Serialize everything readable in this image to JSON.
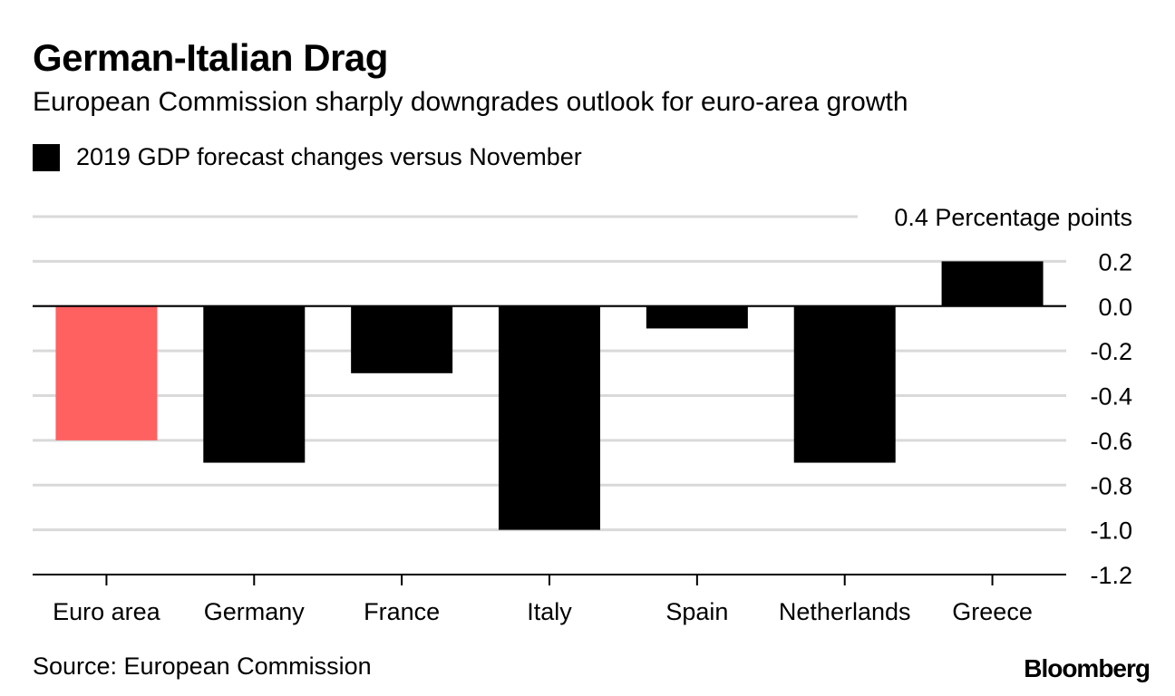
{
  "header": {
    "title": "German-Italian Drag",
    "subtitle": "European Commission sharply downgrades outlook for euro-area growth"
  },
  "legend": {
    "label": "2019 GDP forecast changes versus November",
    "color": "#000000"
  },
  "footer": {
    "source": "Source: European Commission",
    "brand": "Bloomberg"
  },
  "colors": {
    "highlight": "#ff6060",
    "bar": "#000000",
    "grid": "#d9d9d9",
    "axis": "#000000"
  },
  "chart_data": {
    "type": "bar",
    "title": "German-Italian Drag",
    "subtitle": "European Commission sharply downgrades outlook for euro-area growth",
    "categories": [
      "Euro area",
      "Germany",
      "France",
      "Italy",
      "Spain",
      "Netherlands",
      "Greece"
    ],
    "series": [
      {
        "name": "2019 GDP forecast changes versus November",
        "values": [
          -0.6,
          -0.7,
          -0.3,
          -1.0,
          -0.1,
          -0.7,
          0.2
        ],
        "highlight_index": 0
      }
    ],
    "ylabel": "Percentage points",
    "ylim": [
      -1.2,
      0.4
    ],
    "yticks": [
      0.4,
      0.2,
      0.0,
      -0.2,
      -0.4,
      -0.6,
      -0.8,
      -1.0,
      -1.2
    ],
    "ytick_labels": [
      "0.4 Percentage points",
      "0.2",
      "0.0",
      "-0.2",
      "-0.4",
      "-0.6",
      "-0.8",
      "-1.0",
      "-1.2"
    ],
    "grid": true,
    "legend_position": "top-left",
    "axis_position": "right"
  }
}
